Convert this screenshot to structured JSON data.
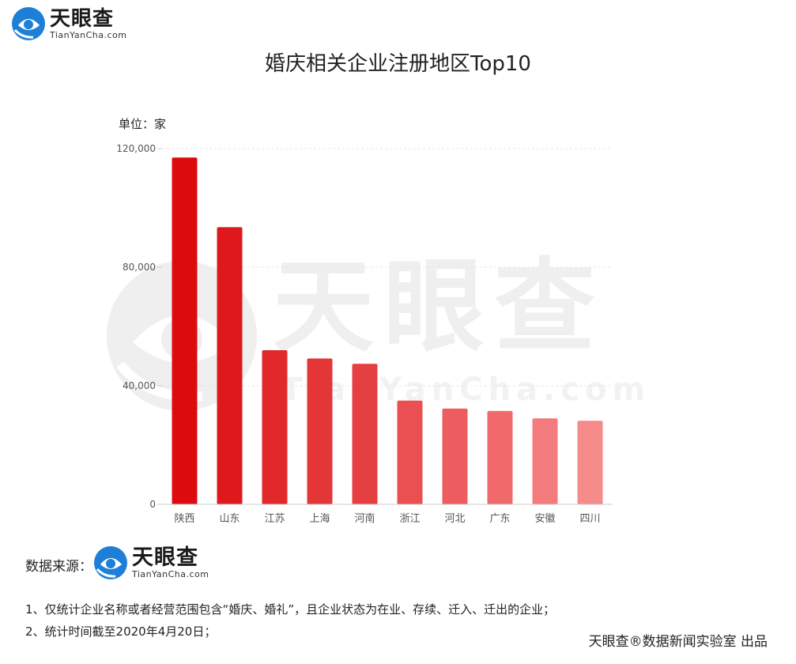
{
  "brand": {
    "name_cn": "天眼查",
    "name_en": "TianYanCha.com",
    "watermark_cn": "天眼查",
    "watermark_en": "TianYanCha.com"
  },
  "colors": {
    "bars": [
      "#dc0c0e",
      "#df191b",
      "#e2292a",
      "#e43537",
      "#e63f41",
      "#ea5052",
      "#ed5c5e",
      "#f06a6c",
      "#f47b7d",
      "#f68b8c"
    ],
    "logo_blue": "#1e7fd8",
    "axis": "#cccccc",
    "grid": "#e6e6e6"
  },
  "chart_data": {
    "type": "bar",
    "title": "婚庆相关企业注册地区Top10",
    "unit_label": "单位：家",
    "categories": [
      "陕西",
      "山东",
      "江苏",
      "上海",
      "河南",
      "浙江",
      "河北",
      "广东",
      "安徽",
      "四川"
    ],
    "values": [
      117000,
      93500,
      52000,
      49200,
      47400,
      35000,
      32300,
      31500,
      29000,
      28200
    ],
    "ylim": [
      0,
      120000
    ],
    "yticks": [
      0,
      40000,
      80000,
      120000
    ],
    "ytick_labels": [
      "0",
      "40,000",
      "80,000",
      "120,000"
    ],
    "grid": true,
    "legend": "none"
  },
  "footer": {
    "source_label": "数据来源：",
    "note1": "1、仅统计企业名称或者经营范围包含“婚庆、婚礼”，且企业状态为在业、存续、迁入、迁出的企业；",
    "note2": "2、统计时间截至2020年4月20日；",
    "credit": "天眼查®数据新闻实验室 出品"
  }
}
